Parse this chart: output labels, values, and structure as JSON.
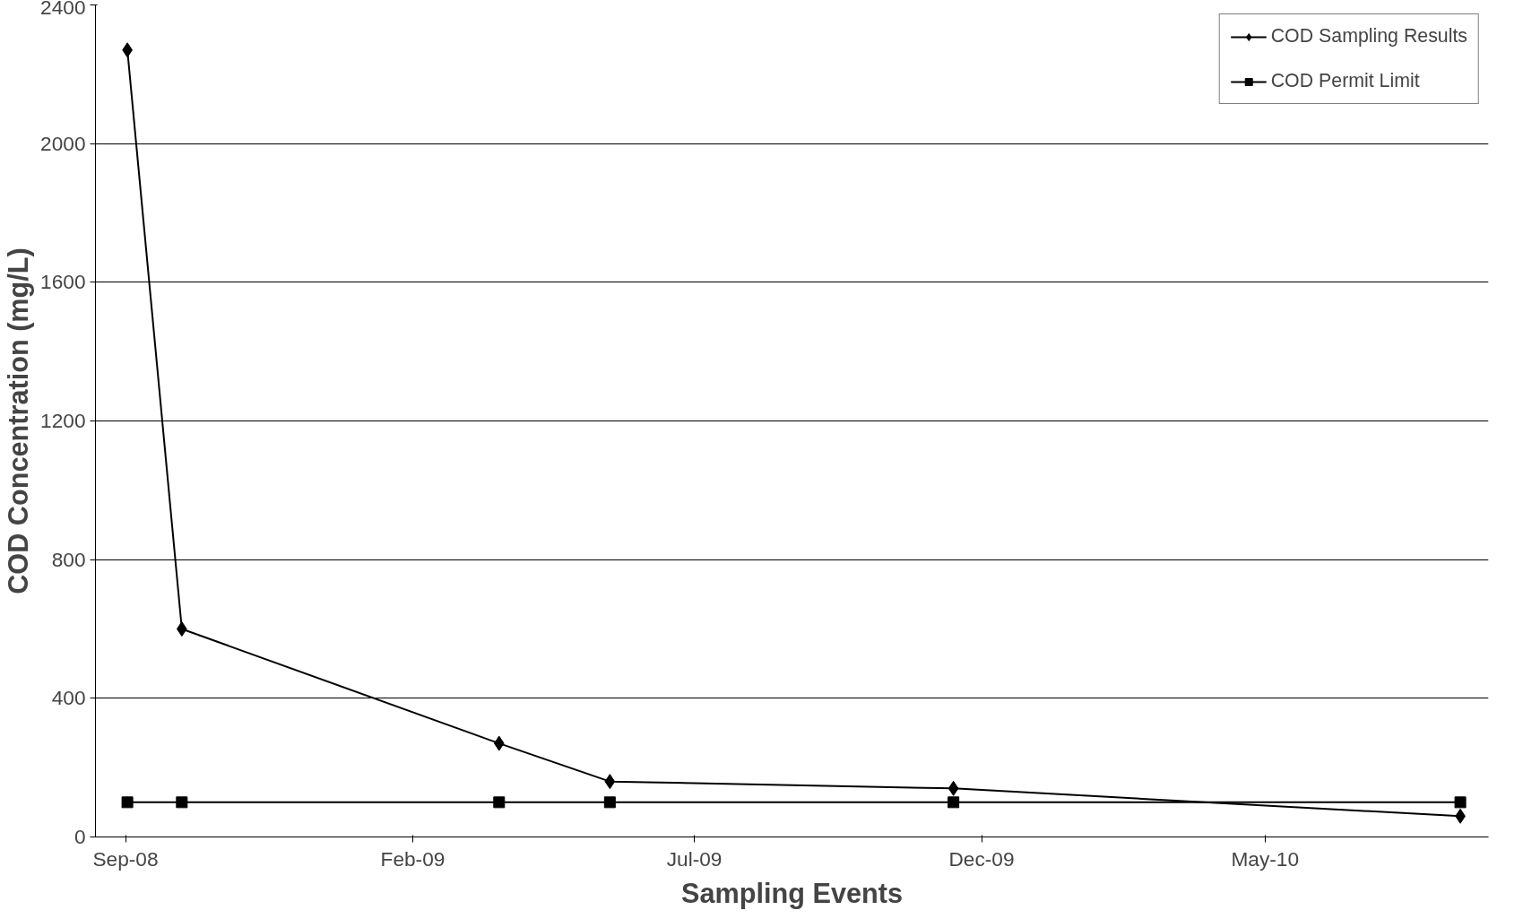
{
  "chart_data": {
    "type": "line",
    "xlabel": "Sampling Events",
    "ylabel": "COD Concentration (mg/L)",
    "x": [
      "2008-09-02",
      "2008-10-01",
      "2009-03-19",
      "2009-05-17",
      "2009-11-16",
      "2010-08-13"
    ],
    "series": [
      {
        "name": "COD Sampling Results",
        "color": "#000000",
        "marker": "diamond",
        "values": [
          2270,
          600,
          270,
          160,
          140,
          60
        ]
      },
      {
        "name": "COD Permit Limit",
        "color": "#000000",
        "marker": "square",
        "values": [
          100,
          100,
          100,
          100,
          100,
          100
        ]
      }
    ],
    "xlim": [
      "2008-08-16",
      "2010-08-28"
    ],
    "xticks": [
      {
        "value": "2008-09-01",
        "label": "Sep-08"
      },
      {
        "value": "2009-02-01",
        "label": "Feb-09"
      },
      {
        "value": "2009-07-01",
        "label": "Jul-09"
      },
      {
        "value": "2009-12-01",
        "label": "Dec-09"
      },
      {
        "value": "2010-05-01",
        "label": "May-10"
      }
    ],
    "ylim": [
      0,
      2400
    ],
    "yticks": [
      0,
      400,
      800,
      1200,
      1600,
      2000,
      2400
    ],
    "grid": "y",
    "legend": "top right",
    "line_style": "solid"
  }
}
